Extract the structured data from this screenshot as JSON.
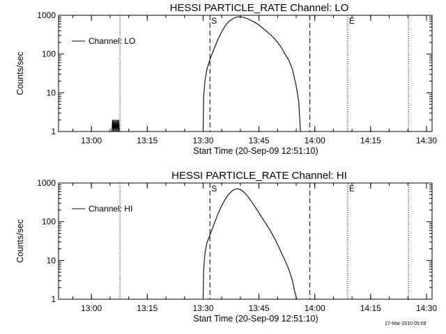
{
  "footer": {
    "timestamp": "17-Mar-2010 05:09"
  },
  "chart_data": [
    {
      "type": "line",
      "title": "HESSI PARTICLE_RATE Channel: LO",
      "xlabel": "Start Time (20-Sep-09 12:51:10)",
      "ylabel": "Counts/sec",
      "y_scale": "log",
      "ylim": [
        1,
        1000
      ],
      "y_ticks": [
        "1",
        "10",
        "100",
        "1000"
      ],
      "xlim": [
        "12:51:10",
        "14:31:30"
      ],
      "x_ticks": [
        "13:00",
        "13:15",
        "13:30",
        "13:45",
        "14:00",
        "14:15",
        "14:30"
      ],
      "legend": {
        "entries": [
          "Channel: LO"
        ],
        "placement": "top-left"
      },
      "markers": [
        {
          "label": "S",
          "time": "13:31:50",
          "style": "dashed"
        },
        {
          "label": "",
          "time": "13:58:40",
          "style": "dashed"
        },
        {
          "label": "E",
          "time": "14:08:50",
          "style": "dotted"
        },
        {
          "label": "",
          "time": "13:07:40",
          "style": "dotted"
        },
        {
          "label": "",
          "time": "14:25:10",
          "style": "dotted"
        }
      ],
      "series": [
        {
          "name": "Channel: LO",
          "points": [
            [
              "13:05:30",
              1
            ],
            [
              "13:05:40",
              2
            ],
            [
              "13:05:50",
              1
            ],
            [
              "13:06:00",
              2
            ],
            [
              "13:06:10",
              1
            ],
            [
              "13:06:20",
              2
            ],
            [
              "13:06:30",
              1
            ],
            [
              "13:06:40",
              2
            ],
            [
              "13:06:50",
              1
            ],
            [
              "13:07:00",
              2
            ],
            [
              "13:07:10",
              1
            ],
            [
              "13:07:20",
              2
            ],
            [
              "13:07:30",
              1
            ],
            [
              "13:30:00",
              1
            ],
            [
              "13:30:10",
              8
            ],
            [
              "13:30:30",
              20
            ],
            [
              "13:31:00",
              40
            ],
            [
              "13:32:00",
              80
            ],
            [
              "13:33:00",
              140
            ],
            [
              "13:34:00",
              240
            ],
            [
              "13:35:00",
              380
            ],
            [
              "13:36:00",
              550
            ],
            [
              "13:37:00",
              700
            ],
            [
              "13:38:00",
              820
            ],
            [
              "13:39:00",
              900
            ],
            [
              "13:40:00",
              920
            ],
            [
              "13:41:00",
              880
            ],
            [
              "13:42:00",
              810
            ],
            [
              "13:43:00",
              730
            ],
            [
              "13:44:00",
              650
            ],
            [
              "13:45:00",
              560
            ],
            [
              "13:46:00",
              470
            ],
            [
              "13:47:00",
              390
            ],
            [
              "13:48:00",
              320
            ],
            [
              "13:49:00",
              260
            ],
            [
              "13:50:00",
              200
            ],
            [
              "13:51:00",
              150
            ],
            [
              "13:52:00",
              100
            ],
            [
              "13:53:00",
              70
            ],
            [
              "13:54:00",
              40
            ],
            [
              "13:55:00",
              15
            ],
            [
              "13:55:40",
              6
            ],
            [
              "13:56:10",
              1
            ]
          ]
        }
      ]
    },
    {
      "type": "line",
      "title": "HESSI PARTICLE_RATE Channel: HI",
      "xlabel": "Start Time (20-Sep-09 12:51:10)",
      "ylabel": "Counts/sec",
      "y_scale": "log",
      "ylim": [
        1,
        1000
      ],
      "y_ticks": [
        "1",
        "10",
        "100",
        "1000"
      ],
      "xlim": [
        "12:51:10",
        "14:31:30"
      ],
      "x_ticks": [
        "13:00",
        "13:15",
        "13:30",
        "13:45",
        "14:00",
        "14:15",
        "14:30"
      ],
      "legend": {
        "entries": [
          "Channel: HI"
        ],
        "placement": "top-left"
      },
      "markers": [
        {
          "label": "S",
          "time": "13:31:50",
          "style": "dashed"
        },
        {
          "label": "",
          "time": "13:58:40",
          "style": "dashed"
        },
        {
          "label": "E",
          "time": "14:08:50",
          "style": "dotted"
        },
        {
          "label": "",
          "time": "13:07:40",
          "style": "dotted"
        },
        {
          "label": "",
          "time": "14:25:10",
          "style": "dotted"
        }
      ],
      "series": [
        {
          "name": "Channel: HI",
          "points": [
            [
              "13:30:00",
              1
            ],
            [
              "13:30:10",
              6
            ],
            [
              "13:30:30",
              15
            ],
            [
              "13:31:00",
              28
            ],
            [
              "13:32:00",
              50
            ],
            [
              "13:33:00",
              90
            ],
            [
              "13:34:00",
              160
            ],
            [
              "13:35:00",
              260
            ],
            [
              "13:36:00",
              390
            ],
            [
              "13:37:00",
              530
            ],
            [
              "13:38:00",
              650
            ],
            [
              "13:39:00",
              710
            ],
            [
              "13:40:00",
              680
            ],
            [
              "13:41:00",
              580
            ],
            [
              "13:42:00",
              450
            ],
            [
              "13:43:00",
              330
            ],
            [
              "13:44:00",
              240
            ],
            [
              "13:45:00",
              170
            ],
            [
              "13:46:00",
              120
            ],
            [
              "13:47:00",
              85
            ],
            [
              "13:48:00",
              60
            ],
            [
              "13:49:00",
              40
            ],
            [
              "13:50:00",
              26
            ],
            [
              "13:51:00",
              16
            ],
            [
              "13:52:00",
              10
            ],
            [
              "13:53:00",
              6
            ],
            [
              "13:54:00",
              3
            ],
            [
              "13:54:40",
              1.5
            ],
            [
              "13:55:10",
              1
            ]
          ]
        }
      ]
    }
  ]
}
